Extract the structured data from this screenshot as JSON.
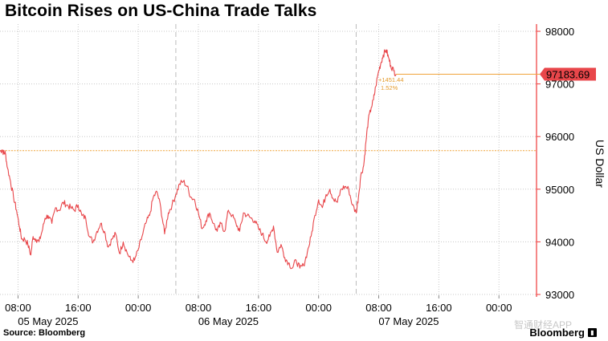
{
  "title": "Bitcoin Rises on US-China Trade Talks",
  "source": "Source: Bloomberg",
  "brand": "Bloomberg",
  "watermark": "智通财经APP",
  "colors": {
    "line": "#e8464a",
    "reference": "#f0a43a",
    "annotation": "#e39a2b",
    "last_label_bg": "#e8464a",
    "grid": "#c8c8c8",
    "axis": "#ee3a3a"
  },
  "chart_data": {
    "type": "line",
    "title": "Bitcoin Rises on US-China Trade Talks",
    "ylabel": "US Dollar",
    "xlabel": "",
    "ylim": [
      93000,
      98200
    ],
    "yticks": [
      93000,
      94000,
      95000,
      96000,
      97000,
      98000
    ],
    "y_axis_side": "right",
    "grid": "dotted",
    "x_tick_times": [
      "08:00",
      "16:00",
      "00:00",
      "08:00",
      "16:00",
      "00:00",
      "08:00",
      "16:00",
      "00:00"
    ],
    "x_tick_hours": [
      8,
      16,
      24,
      32,
      40,
      48,
      56,
      64,
      72
    ],
    "x_date_labels": [
      {
        "label": "05 May 2025",
        "hour": 12
      },
      {
        "label": "06 May 2025",
        "hour": 36
      },
      {
        "label": "07 May 2025",
        "hour": 60
      }
    ],
    "day_separators_hours": [
      29,
      53
    ],
    "x_range_hours": [
      5.6,
      77
    ],
    "reference_value": 95732.25,
    "last_value": "97183.69",
    "change_label": "+1451.44",
    "change_pct_label": "1.52%",
    "series": [
      {
        "x_hours": [
          5.6,
          5.9,
          6.1,
          6.3,
          6.6,
          7,
          7.4,
          7.8,
          8.2,
          8.5,
          8.9,
          9.3,
          9.7,
          10,
          10.4,
          10.8,
          11.2,
          11.6,
          12,
          12.5,
          13,
          13.5,
          14,
          14.5,
          15,
          15.5,
          16,
          16.5,
          17,
          17.5,
          18,
          18.5,
          19,
          19.5,
          20,
          20.5,
          21,
          21.5,
          22,
          22.5,
          23,
          23.5,
          24,
          24.5,
          25,
          25.5,
          26,
          26.5,
          27,
          27.5,
          28,
          28.5,
          29,
          29.5,
          30,
          30.5,
          31,
          31.5,
          32,
          32.5,
          33,
          33.5,
          34,
          34.5,
          35,
          35.5,
          36,
          36.5,
          37,
          37.5,
          38,
          38.5,
          39,
          39.5,
          40,
          40.5,
          41,
          41.5,
          42,
          42.5,
          43,
          43.5,
          44,
          44.5,
          45,
          45.5,
          46,
          46.5,
          47,
          47.5,
          48,
          48.5,
          49,
          49.5,
          50,
          50.5,
          51,
          51.5,
          52,
          52.5,
          53,
          53.3,
          53.6,
          54,
          54.3,
          54.6,
          55,
          55.3,
          55.6,
          56,
          56.3,
          56.6,
          57,
          57.3,
          57.6,
          58,
          58.3
        ],
        "values": [
          95720,
          95750,
          95680,
          95700,
          95400,
          95150,
          94850,
          94600,
          94280,
          94050,
          94050,
          93960,
          93750,
          94100,
          94050,
          94000,
          94200,
          94450,
          94500,
          94350,
          94650,
          94600,
          94750,
          94700,
          94650,
          94600,
          94700,
          94500,
          94450,
          94100,
          94000,
          94200,
          94350,
          94200,
          93900,
          94050,
          94150,
          93780,
          94000,
          93800,
          93650,
          93650,
          93850,
          94100,
          94350,
          94500,
          94850,
          94950,
          94650,
          94150,
          94550,
          94700,
          94900,
          95100,
          95150,
          95050,
          94850,
          94800,
          94550,
          94250,
          94400,
          94550,
          94350,
          94200,
          94350,
          94200,
          94600,
          94500,
          94350,
          94200,
          94550,
          94500,
          94450,
          94400,
          94250,
          94150,
          94000,
          94100,
          94300,
          93800,
          93950,
          93700,
          93600,
          93500,
          93650,
          93500,
          93550,
          93800,
          94100,
          94500,
          94800,
          94650,
          94900,
          95000,
          94800,
          94750,
          95000,
          95050,
          95000,
          94700,
          94550,
          94850,
          95250,
          95450,
          95900,
          96300,
          96550,
          96700,
          96950,
          97250,
          97400,
          97550,
          97650,
          97500,
          97350,
          97250,
          97183.69
        ]
      }
    ]
  }
}
